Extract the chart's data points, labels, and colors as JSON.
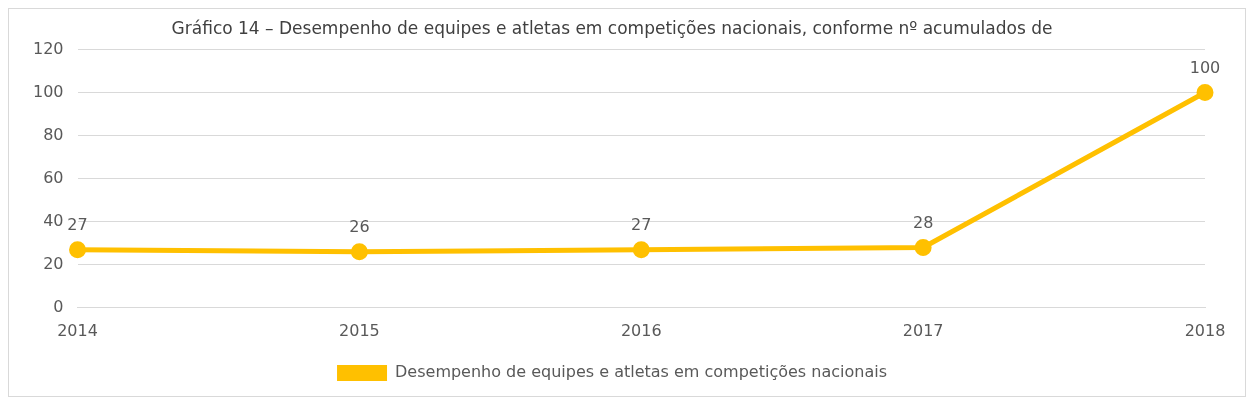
{
  "chart_data": {
    "type": "line",
    "title": "Gráfico 14 – Desempenho de equipes e atletas em competições nacionais, conforme nº acumulados de",
    "categories": [
      "2014",
      "2015",
      "2016",
      "2017",
      "2018"
    ],
    "series": [
      {
        "name": "Desempenho de equipes e atletas em competições nacionais",
        "color": "#ffc000",
        "values": [
          27,
          26,
          27,
          28,
          100
        ]
      }
    ],
    "ylim": [
      0,
      120
    ],
    "yticks": [
      0,
      20,
      40,
      60,
      80,
      100,
      120
    ],
    "grid": "y",
    "legend": "bottom",
    "marker": "circle",
    "line_style": "solid",
    "data_labels": true
  }
}
